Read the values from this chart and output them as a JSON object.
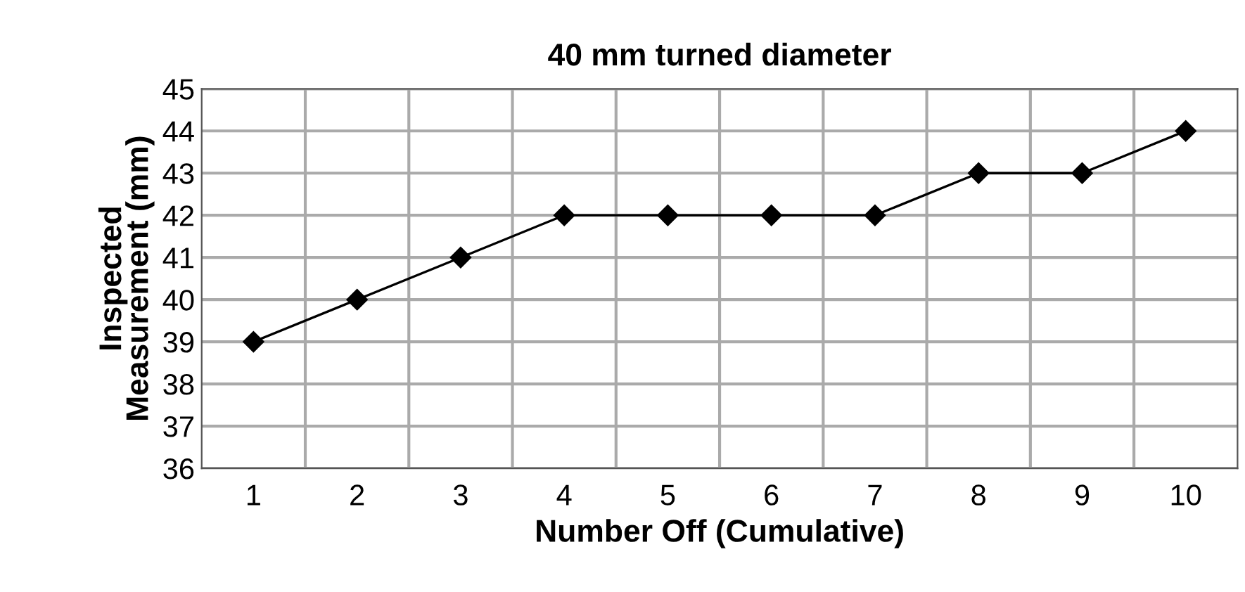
{
  "chart_data": {
    "type": "line",
    "title": "40 mm turned diameter",
    "xlabel": "Number Off (Cumulative)",
    "ylabel": "Inspected\nMeasurement (mm)",
    "categories": [
      "1",
      "2",
      "3",
      "4",
      "5",
      "6",
      "7",
      "8",
      "9",
      "10"
    ],
    "series": [
      {
        "color": "#000000",
        "values": [
          39,
          40,
          41,
          42,
          42,
          42,
          42,
          43,
          43,
          44
        ]
      }
    ],
    "ylim": [
      36,
      45
    ],
    "yticks": [
      36,
      37,
      38,
      39,
      40,
      41,
      42,
      43,
      44,
      45
    ],
    "grid": true,
    "marker": "diamond",
    "line_style": "solid",
    "legend": false
  }
}
